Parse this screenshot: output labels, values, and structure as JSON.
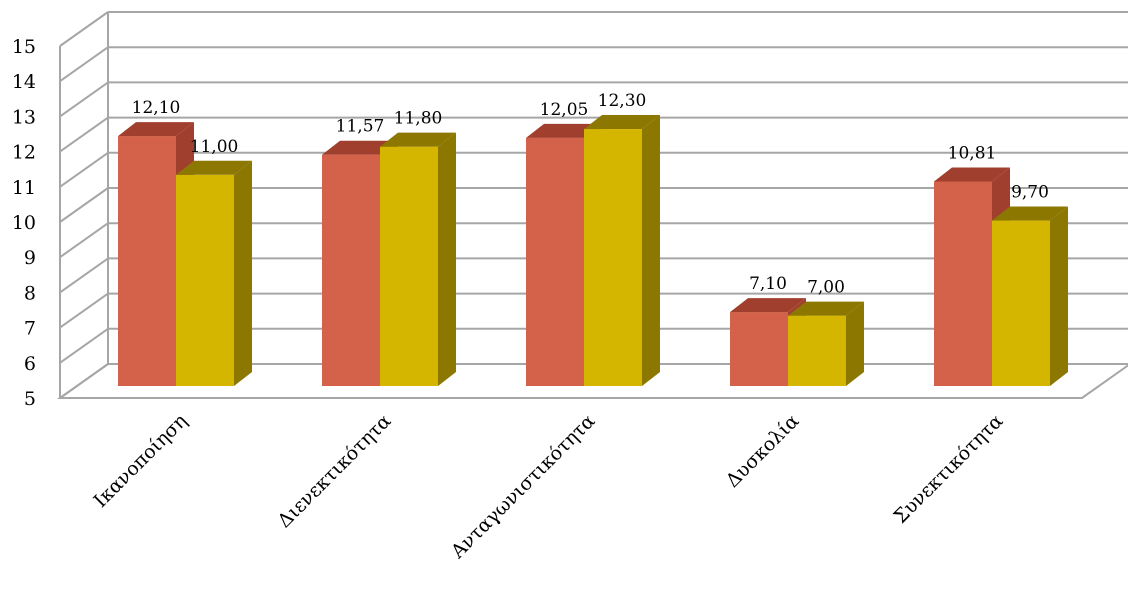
{
  "chart_data": {
    "type": "bar",
    "categories": [
      "Ικανοποίηση",
      "Διενεκτικότητα",
      "Ανταγωνιστικότητα",
      "Δυσκολία",
      "Συνεκτικότητα"
    ],
    "series": [
      {
        "values": [
          12.1,
          11.57,
          12.05,
          7.1,
          10.81
        ],
        "labels": [
          "12,10",
          "11,57",
          "12,05",
          "7,10",
          "10,81"
        ],
        "color": "#D4624A",
        "side_color": "#A13F2E"
      },
      {
        "values": [
          11.0,
          11.8,
          12.3,
          7.0,
          9.7
        ],
        "labels": [
          "11,00",
          "11,80",
          "12,30",
          "7,00",
          "9,70"
        ],
        "color": "#D4B600",
        "side_color": "#8C7700"
      }
    ],
    "ylim": [
      5,
      15
    ],
    "yticks": [
      "5",
      "6",
      "7",
      "8",
      "9",
      "10",
      "11",
      "12",
      "13",
      "14",
      "15"
    ],
    "grid": true,
    "three_d": true,
    "title": "",
    "xlabel": "",
    "ylabel": ""
  }
}
